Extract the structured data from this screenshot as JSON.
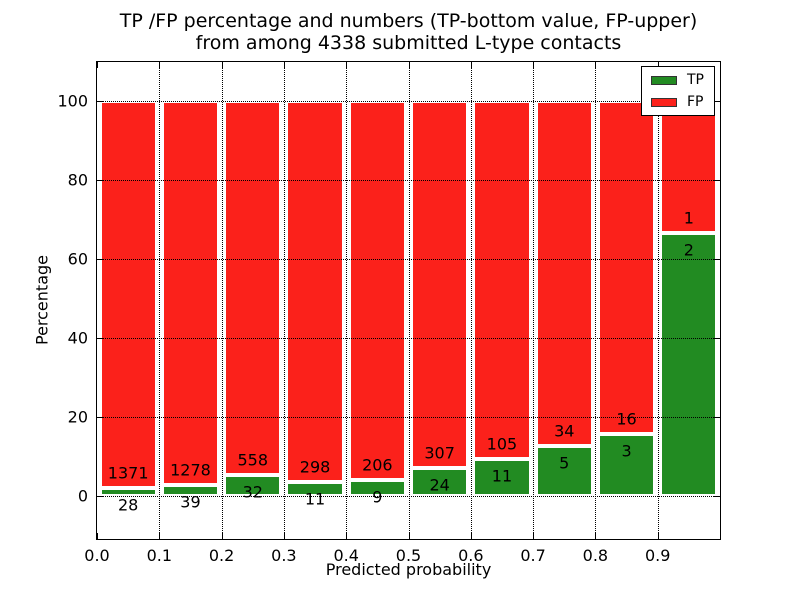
{
  "chart_data": {
    "type": "bar",
    "stacked": true,
    "title_line1": "TP /FP percentage and numbers (TP-bottom value, FP-upper)",
    "title_line2": "from among 4338 submitted L-type contacts",
    "xlabel": "Predicted probability",
    "ylabel": "Percentage",
    "xlim": [
      0.0,
      1.0
    ],
    "ylim": [
      -10.8,
      109.8
    ],
    "grid": true,
    "xtick_labels": [
      "0.0",
      "0.1",
      "0.2",
      "0.3",
      "0.4",
      "0.5",
      "0.6",
      "0.7",
      "0.8",
      "0.9"
    ],
    "ytick_labels": [
      "0",
      "20",
      "40",
      "60",
      "80",
      "100"
    ],
    "ytick_values": [
      0,
      20,
      40,
      60,
      80,
      100
    ],
    "categories": [
      "0.0-0.1",
      "0.1-0.2",
      "0.2-0.3",
      "0.3-0.4",
      "0.4-0.5",
      "0.5-0.6",
      "0.6-0.7",
      "0.7-0.8",
      "0.8-0.9",
      "0.9-1.0"
    ],
    "bin_width": 0.1,
    "note": "Each bar is normalized to 100%; TP percentage = tp/(tp+fp)*100, FP stacked above it; counts are printed on the bars (TP below boundary, FP above boundary)",
    "series": [
      {
        "name": "TP",
        "color": "#228b22",
        "counts": [
          28,
          39,
          32,
          11,
          9,
          24,
          11,
          5,
          3,
          2
        ]
      },
      {
        "name": "FP",
        "color": "#fb211b",
        "counts": [
          1371,
          1278,
          558,
          298,
          206,
          307,
          105,
          34,
          16,
          1
        ]
      }
    ],
    "legend": {
      "position": "upper right",
      "entries": [
        "TP",
        "FP"
      ]
    },
    "colors": {
      "tp": "#228b22",
      "fp": "#fb211b",
      "background": "#ffffff",
      "text": "#000000"
    }
  }
}
